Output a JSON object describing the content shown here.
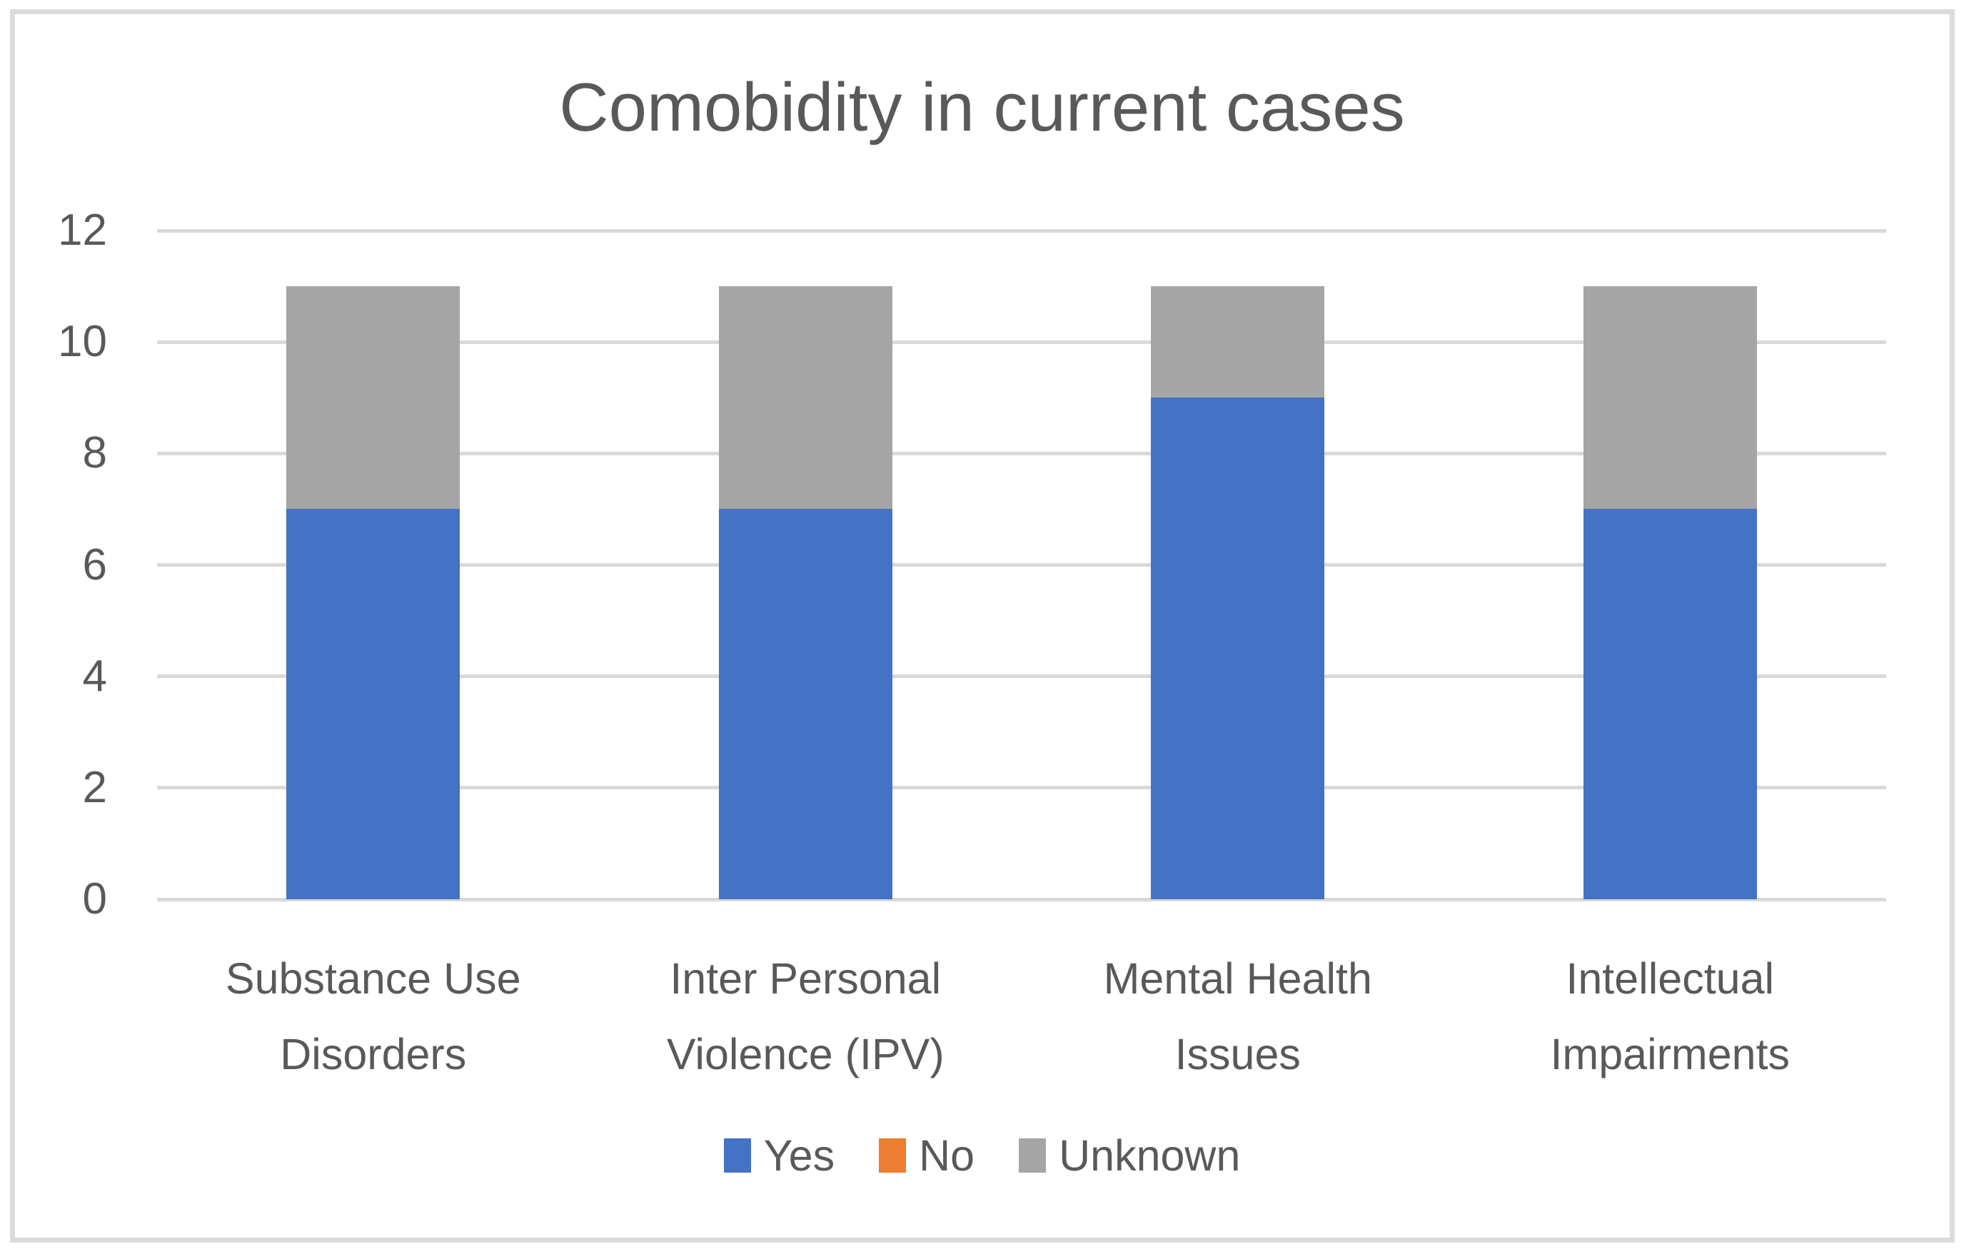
{
  "chart_data": {
    "type": "bar",
    "stacked": true,
    "title": "Comobidity in current cases",
    "categories": [
      "Substance Use Disorders",
      "Inter Personal Violence (IPV)",
      "Mental Health Issues",
      "Intellectual Impairments"
    ],
    "series": [
      {
        "name": "Yes",
        "color": "#4472C4",
        "values": [
          7,
          7,
          9,
          7
        ]
      },
      {
        "name": "No",
        "color": "#ED7D31",
        "values": [
          0,
          0,
          0,
          0
        ]
      },
      {
        "name": "Unknown",
        "color": "#A5A5A5",
        "values": [
          4,
          4,
          2,
          4
        ]
      }
    ],
    "totals_per_category": [
      11,
      11,
      11,
      11
    ],
    "xlabel": "",
    "ylabel": "",
    "ylim": [
      0,
      12
    ],
    "yticks": [
      0,
      2,
      4,
      6,
      8,
      10,
      12
    ],
    "grid": true,
    "legend_position": "bottom"
  },
  "colors": {
    "background": "#FFFFFF",
    "frame_border": "#DBDBDB",
    "gridline": "#D9D9D9",
    "axis_text": "#595959",
    "title_text": "#595959"
  }
}
